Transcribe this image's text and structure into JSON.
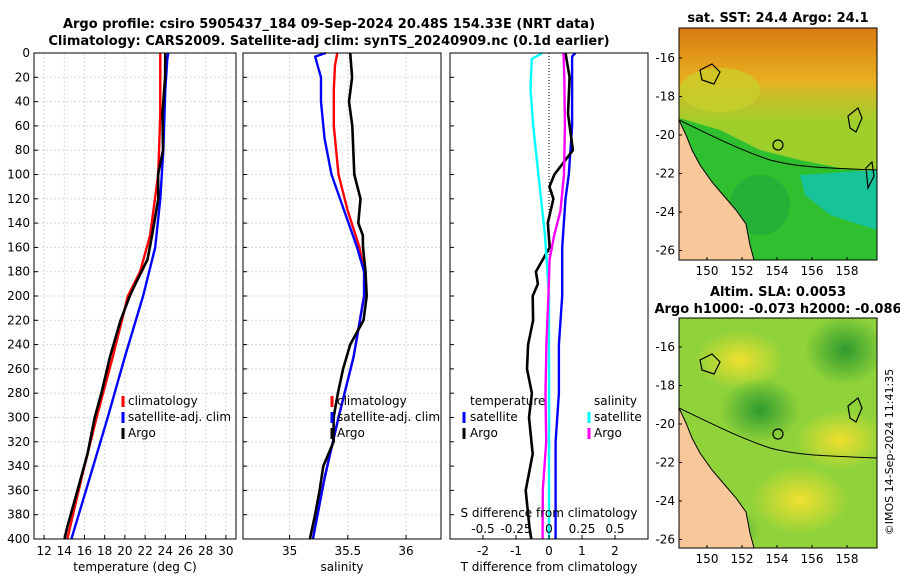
{
  "header": {
    "line1": "Argo profile: csiro 5905437_184 09-Sep-2024 20.48S 154.33E (NRT data)",
    "line2": "Climatology: CARS2009. Satellite-adj clim: synTS_20240909.nc (0.1d earlier)"
  },
  "colors": {
    "argo": "#000000",
    "climatology": "#ff0000",
    "satellite": "#0000ff",
    "sat_salinity": "#00ffff",
    "argo_salinity": "#ff00ff"
  },
  "chart_data": [
    {
      "type": "line",
      "id": "temperature",
      "xlabel": "temperature (deg C)",
      "xlim": [
        11,
        31
      ],
      "ylim": [
        0,
        400
      ],
      "y_reversed": true,
      "xticks": [
        12,
        14,
        16,
        18,
        20,
        22,
        24,
        26,
        28,
        30
      ],
      "yticks": [
        0,
        20,
        40,
        60,
        80,
        100,
        120,
        140,
        160,
        180,
        200,
        220,
        240,
        260,
        280,
        300,
        320,
        340,
        360,
        380,
        400
      ],
      "grid": true,
      "legend_position": "lower-right",
      "legend": [
        "climatology",
        "satellite-adj. clim",
        "Argo"
      ],
      "series": [
        {
          "name": "climatology",
          "color": "red",
          "depth": [
            0,
            50,
            100,
            150,
            180,
            200,
            250,
            300,
            350,
            400
          ],
          "values": [
            23.5,
            23.5,
            23.3,
            22.5,
            21.5,
            20.3,
            18.8,
            17.2,
            15.7,
            14.3
          ]
        },
        {
          "name": "satellite-adj. clim",
          "color": "blue",
          "depth": [
            0,
            5,
            30,
            80,
            120,
            160,
            200,
            250,
            300,
            350,
            400
          ],
          "values": [
            24.3,
            24.2,
            24.0,
            23.8,
            23.5,
            23.0,
            21.8,
            20.0,
            18.3,
            16.5,
            14.7
          ]
        },
        {
          "name": "Argo",
          "color": "black",
          "depth": [
            0,
            20,
            50,
            80,
            100,
            120,
            150,
            170,
            190,
            200,
            220,
            250,
            280,
            300,
            330,
            360,
            390,
            400
          ],
          "values": [
            24.0,
            23.9,
            23.8,
            23.7,
            23.4,
            23.2,
            22.8,
            22.2,
            21.0,
            20.6,
            19.5,
            18.6,
            17.6,
            17.0,
            16.3,
            15.3,
            14.3,
            13.9
          ]
        }
      ]
    },
    {
      "type": "line",
      "id": "salinity",
      "xlabel": "salinity",
      "xlim": [
        34.6,
        36.3
      ],
      "ylim": [
        0,
        400
      ],
      "y_reversed": true,
      "xticks": [
        35,
        35.5,
        36
      ],
      "xtick_labels": [
        "35",
        "35.5",
        "36"
      ],
      "grid": true,
      "legend_position": "lower-right",
      "legend": [
        "climatology",
        "satellite-adj. clim",
        "Argo"
      ],
      "series": [
        {
          "name": "climatology",
          "color": "red",
          "depth": [
            0,
            10,
            30,
            60,
            100,
            130,
            160,
            180,
            200,
            250,
            300,
            350,
            400
          ],
          "values": [
            35.41,
            35.39,
            35.38,
            35.38,
            35.42,
            35.5,
            35.6,
            35.64,
            35.64,
            35.55,
            35.42,
            35.3,
            35.2
          ],
          "hidden_below": 45
        },
        {
          "name": "satellite-adj. clim",
          "color": "blue",
          "depth": [
            0,
            3,
            10,
            20,
            40,
            70,
            100,
            130,
            160,
            180,
            200,
            250,
            300,
            350,
            400
          ],
          "values": [
            35.31,
            35.22,
            35.24,
            35.27,
            35.27,
            35.3,
            35.36,
            35.47,
            35.58,
            35.64,
            35.64,
            35.55,
            35.42,
            35.3,
            35.2
          ]
        },
        {
          "name": "Argo",
          "color": "black",
          "depth": [
            0,
            20,
            40,
            60,
            80,
            100,
            120,
            140,
            150,
            160,
            180,
            200,
            220,
            240,
            260,
            280,
            300,
            320,
            340,
            360,
            380,
            400
          ],
          "values": [
            35.52,
            35.53,
            35.52,
            35.53,
            35.55,
            35.56,
            35.6,
            35.6,
            35.63,
            35.62,
            35.66,
            35.66,
            35.63,
            35.53,
            35.45,
            35.42,
            35.38,
            35.37,
            35.3,
            35.25,
            35.22,
            35.18
          ]
        }
      ]
    },
    {
      "type": "line",
      "id": "differences",
      "xlabel": "T difference from climatology",
      "x2label": "S difference from climatology",
      "xlim": [
        -3,
        3
      ],
      "x2lim": [
        -0.75,
        0.75
      ],
      "ylim": [
        0,
        400
      ],
      "y_reversed": true,
      "xticks": [
        -2,
        -1,
        0,
        1,
        2
      ],
      "xtick_labels": [
        "-2",
        "-1",
        "0",
        "1",
        "2"
      ],
      "x2ticks": [
        -0.5,
        -0.25,
        0,
        0.25,
        0.5
      ],
      "x2tick_labels": [
        "-0.5",
        "-0.25",
        "0",
        "0.25",
        "0.5"
      ],
      "zero_line": "dotted",
      "legend_temperature_title": "temperature",
      "legend_salinity_title": "salinity",
      "legend_temperature": [
        "satellite",
        "Argo"
      ],
      "legend_salinity": [
        "satellite",
        "Argo"
      ],
      "series": [
        {
          "name": "T satellite",
          "color": "blue",
          "axis": "T",
          "depth": [
            0,
            3,
            20,
            60,
            100,
            120,
            160,
            200,
            240,
            280,
            320,
            360,
            400
          ],
          "values": [
            0.8,
            0.7,
            0.7,
            0.7,
            0.6,
            0.5,
            0.4,
            0.4,
            0.3,
            0.3,
            0.2,
            0.2,
            0.2
          ]
        },
        {
          "name": "T Argo",
          "color": "black",
          "axis": "T",
          "depth": [
            0,
            20,
            50,
            80,
            100,
            110,
            120,
            140,
            160,
            180,
            190,
            200,
            220,
            240,
            260,
            280,
            300,
            330,
            360,
            390,
            400
          ],
          "values": [
            0.5,
            0.6,
            0.6,
            0.7,
            0.2,
            0.0,
            0.1,
            0.0,
            0.0,
            -0.4,
            -0.3,
            -0.5,
            -0.5,
            -0.6,
            -0.7,
            -0.5,
            -0.6,
            -0.5,
            -0.7,
            -0.6,
            -0.5
          ]
        },
        {
          "name": "S satellite",
          "color": "cyan",
          "axis": "S",
          "depth": [
            0,
            5,
            30,
            60,
            100,
            150,
            200,
            300,
            400
          ],
          "values": [
            -0.05,
            -0.13,
            -0.14,
            -0.12,
            -0.08,
            -0.03,
            0.0,
            0.0,
            0.0
          ]
        },
        {
          "name": "S Argo",
          "color": "magenta",
          "axis": "S",
          "depth": [
            0,
            20,
            60,
            100,
            130,
            150,
            170,
            200,
            240,
            280,
            320,
            360,
            400
          ],
          "values": [
            0.11,
            0.11,
            0.12,
            0.12,
            0.08,
            0.04,
            0.01,
            -0.01,
            -0.02,
            -0.02,
            -0.03,
            -0.04,
            -0.05
          ]
        }
      ]
    }
  ],
  "maps": {
    "sst": {
      "title": "sat. SST: 24.4 Argo: 24.1",
      "yticks": [
        "-16",
        "-18",
        "-20",
        "-22",
        "-24",
        "-26"
      ],
      "xticks": [
        "150",
        "152",
        "154",
        "156",
        "158"
      ]
    },
    "sla": {
      "title1": "Altim. SLA: 0.0053",
      "title2": "Argo h1000: -0.073 h2000: -0.086",
      "yticks": [
        "-16",
        "-18",
        "-20",
        "-22",
        "-24",
        "-26"
      ],
      "xticks": [
        "150",
        "152",
        "154",
        "156",
        "158"
      ]
    }
  },
  "credit": "©IMOS 14-Sep-2024 11:41:35"
}
